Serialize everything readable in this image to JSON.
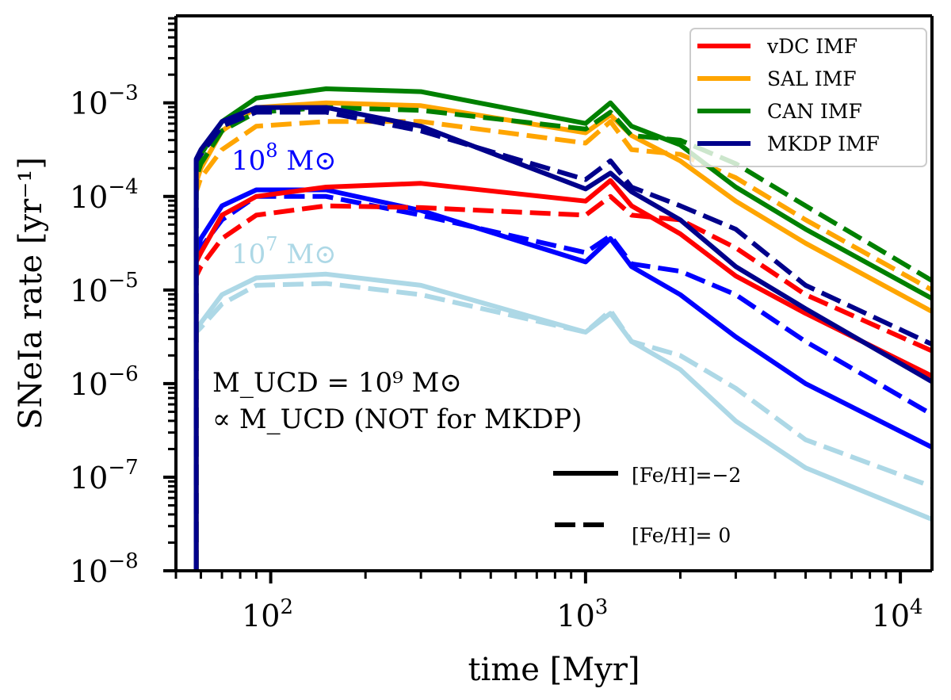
{
  "chart_data": {
    "type": "line",
    "title": "",
    "xlabel": "time [Myr]",
    "ylabel": "SNeIa rate [yr⁻¹]",
    "xscale": "log",
    "yscale": "log",
    "xlim": [
      50,
      12600
    ],
    "ylim": [
      1e-08,
      0.0085
    ],
    "x_ticks": [
      {
        "value": 100,
        "label": "10",
        "exp": "2"
      },
      {
        "value": 1000,
        "label": "10",
        "exp": "3"
      },
      {
        "value": 10000,
        "label": "10",
        "exp": "4"
      }
    ],
    "y_ticks": [
      {
        "value": 0.001,
        "label": "10",
        "exp": "−3"
      },
      {
        "value": 0.0001,
        "label": "10",
        "exp": "−4"
      },
      {
        "value": 1e-05,
        "label": "10",
        "exp": "−5"
      },
      {
        "value": 1e-06,
        "label": "10",
        "exp": "−6"
      },
      {
        "value": 1e-07,
        "label": "10",
        "exp": "−7"
      },
      {
        "value": 1e-08,
        "label": "10",
        "exp": "−8"
      }
    ],
    "grid": false,
    "x": [
      58,
      60,
      70,
      90,
      150,
      300,
      1000,
      1200,
      1400,
      2000,
      3000,
      5000,
      12600
    ],
    "series": [
      {
        "name": "vDC IMF",
        "feh": "-2",
        "color": "#ff0000",
        "dash": false,
        "log10_values": [
          -4.7,
          -4.6,
          -4.2,
          -4.0,
          -3.9,
          -3.86,
          -4.05,
          -3.83,
          -4.1,
          -4.4,
          -4.85,
          -5.25,
          -5.92
        ]
      },
      {
        "name": "vDC IMF",
        "feh": "0",
        "color": "#ff0000",
        "dash": true,
        "log10_values": [
          -4.85,
          -4.75,
          -4.45,
          -4.2,
          -4.1,
          -4.12,
          -4.2,
          -4.0,
          -4.2,
          -4.25,
          -4.55,
          -5.05,
          -5.65
        ]
      },
      {
        "name": "SAL IMF",
        "feh": "-2",
        "color": "#ffa500",
        "dash": false,
        "log10_values": [
          -3.85,
          -3.7,
          -3.3,
          -3.05,
          -3.0,
          -3.03,
          -3.32,
          -3.13,
          -3.35,
          -3.62,
          -4.05,
          -4.5,
          -5.23
        ]
      },
      {
        "name": "SAL IMF",
        "feh": "0",
        "color": "#ffa500",
        "dash": true,
        "log10_values": [
          -3.95,
          -3.8,
          -3.5,
          -3.25,
          -3.2,
          -3.2,
          -3.43,
          -3.2,
          -3.5,
          -3.55,
          -3.8,
          -4.25,
          -5.0
        ]
      },
      {
        "name": "CAN IMF",
        "feh": "-2",
        "color": "#008000",
        "dash": false,
        "log10_values": [
          -3.7,
          -3.55,
          -3.2,
          -2.95,
          -2.85,
          -2.88,
          -3.22,
          -3.0,
          -3.25,
          -3.45,
          -3.9,
          -4.35,
          -5.09
        ]
      },
      {
        "name": "CAN IMF",
        "feh": "0",
        "color": "#008000",
        "dash": true,
        "log10_values": [
          -3.8,
          -3.65,
          -3.3,
          -3.1,
          -3.05,
          -3.08,
          -3.28,
          -3.1,
          -3.35,
          -3.4,
          -3.65,
          -4.1,
          -4.9
        ]
      },
      {
        "name": "MKDP IMF",
        "feh": "-2",
        "color": "#00008b",
        "dash": false,
        "log10_values": [
          -3.6,
          -3.5,
          -3.2,
          -3.05,
          -3.05,
          -3.25,
          -3.92,
          -3.75,
          -3.95,
          -4.25,
          -4.75,
          -5.2,
          -5.98
        ]
      },
      {
        "name": "MKDP IMF",
        "feh": "0",
        "color": "#00008b",
        "dash": true,
        "log10_values": [
          -3.62,
          -3.55,
          -3.25,
          -3.1,
          -3.1,
          -3.3,
          -3.82,
          -3.62,
          -3.9,
          -4.1,
          -4.35,
          -4.95,
          -5.58
        ]
      },
      {
        "name": "10^8 Msun",
        "feh": "-2",
        "color": "#0000ff",
        "dash": false,
        "log10_values": [
          -4.6,
          -4.45,
          -4.1,
          -3.93,
          -3.93,
          -4.15,
          -4.7,
          -4.45,
          -4.75,
          -5.05,
          -5.5,
          -6.0,
          -6.68
        ]
      },
      {
        "name": "10^8 Msun",
        "feh": "0",
        "color": "#0000ff",
        "dash": true,
        "log10_values": [
          -4.7,
          -4.55,
          -4.25,
          -4.0,
          -4.0,
          -4.2,
          -4.6,
          -4.42,
          -4.72,
          -4.8,
          -5.05,
          -5.55,
          -6.33
        ]
      },
      {
        "name": "10^7 Msun",
        "feh": "-2",
        "color": "#add8e6",
        "dash": false,
        "log10_values": [
          -5.4,
          -5.35,
          -5.05,
          -4.87,
          -4.83,
          -4.95,
          -5.45,
          -5.25,
          -5.55,
          -5.85,
          -6.4,
          -6.9,
          -7.45
        ]
      },
      {
        "name": "10^7 Msun",
        "feh": "0",
        "color": "#add8e6",
        "dash": true,
        "log10_values": [
          -5.45,
          -5.4,
          -5.15,
          -4.95,
          -4.93,
          -5.05,
          -5.45,
          -5.22,
          -5.55,
          -5.7,
          -6.05,
          -6.6,
          -7.1
        ]
      }
    ],
    "legend": {
      "placement": "top-right",
      "entries": [
        {
          "label": "vDC IMF",
          "color": "#ff0000"
        },
        {
          "label": "SAL IMF",
          "color": "#ffa500"
        },
        {
          "label": "CAN IMF",
          "color": "#008000"
        },
        {
          "label": "MKDP IMF",
          "color": "#00008b"
        }
      ]
    },
    "style_legend": {
      "placement": "bottom-center",
      "entries": [
        {
          "label": "[Fe/H]=−2",
          "dash": false
        },
        {
          "label": "[Fe/H]= 0",
          "dash": true
        }
      ]
    },
    "annotations": [
      {
        "id": "m8",
        "text": "10",
        "sup": "8",
        "suffix": " M⊙",
        "color": "#0000ff"
      },
      {
        "id": "m7",
        "text": "10",
        "sup": "7",
        "suffix": " M⊙",
        "color": "#add8e6"
      },
      {
        "id": "mucd1",
        "text": "M_UCD = 10⁹ M⊙",
        "color": "#000000"
      },
      {
        "id": "mucd2",
        "text": "∝ M_UCD (NOT for MKDP)",
        "color": "#000000"
      }
    ]
  }
}
